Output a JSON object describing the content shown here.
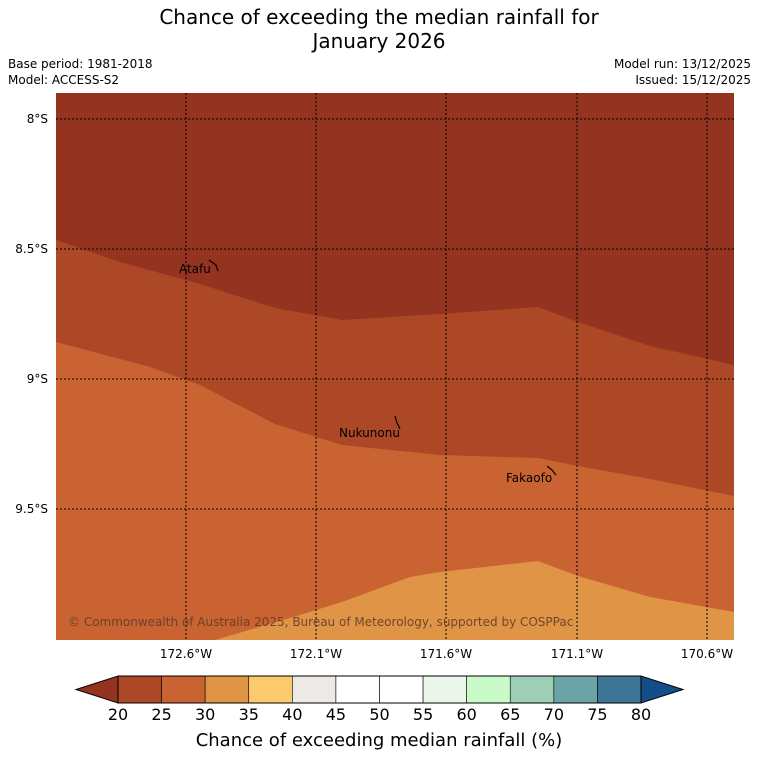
{
  "title": {
    "line1": "Chance of exceeding the median rainfall for",
    "line2": "January 2026"
  },
  "meta": {
    "base_period": "Base period: 1981-2018",
    "model": "Model: ACCESS-S2",
    "model_run": "Model run: 13/12/2025",
    "issued": "Issued: 15/12/2025"
  },
  "map": {
    "lat_labels": [
      "8°S",
      "8.5°S",
      "9°S",
      "9.5°S"
    ],
    "lon_labels": [
      "172.6°W",
      "172.1°W",
      "171.6°W",
      "171.1°W",
      "170.6°W"
    ],
    "places": [
      {
        "name": "Atafu"
      },
      {
        "name": "Nukunonu"
      },
      {
        "name": "Fakaofo"
      }
    ],
    "copyright": "© Commonwealth of Australia 2025, Bureau of Meteorology, supported by COSPPac",
    "zone_colors": {
      "below_20": "#94331f",
      "20_25": "#ad4826",
      "25_30": "#ca6332",
      "30_35": "#e09446"
    }
  },
  "colorbar": {
    "ticks": [
      "20",
      "25",
      "30",
      "35",
      "40",
      "45",
      "50",
      "55",
      "60",
      "65",
      "70",
      "75",
      "80"
    ],
    "colors": [
      "#ad4826",
      "#ca6332",
      "#e09446",
      "#fdca6b",
      "#edeae5",
      "#ffffff",
      "#ffffff",
      "#eaf6ea",
      "#c9fbc9",
      "#9dcfb7",
      "#6ca3a5",
      "#3c7596"
    ],
    "under_color": "#94331f",
    "over_color": "#144e8a",
    "label": "Chance of exceeding median rainfall (%)"
  }
}
